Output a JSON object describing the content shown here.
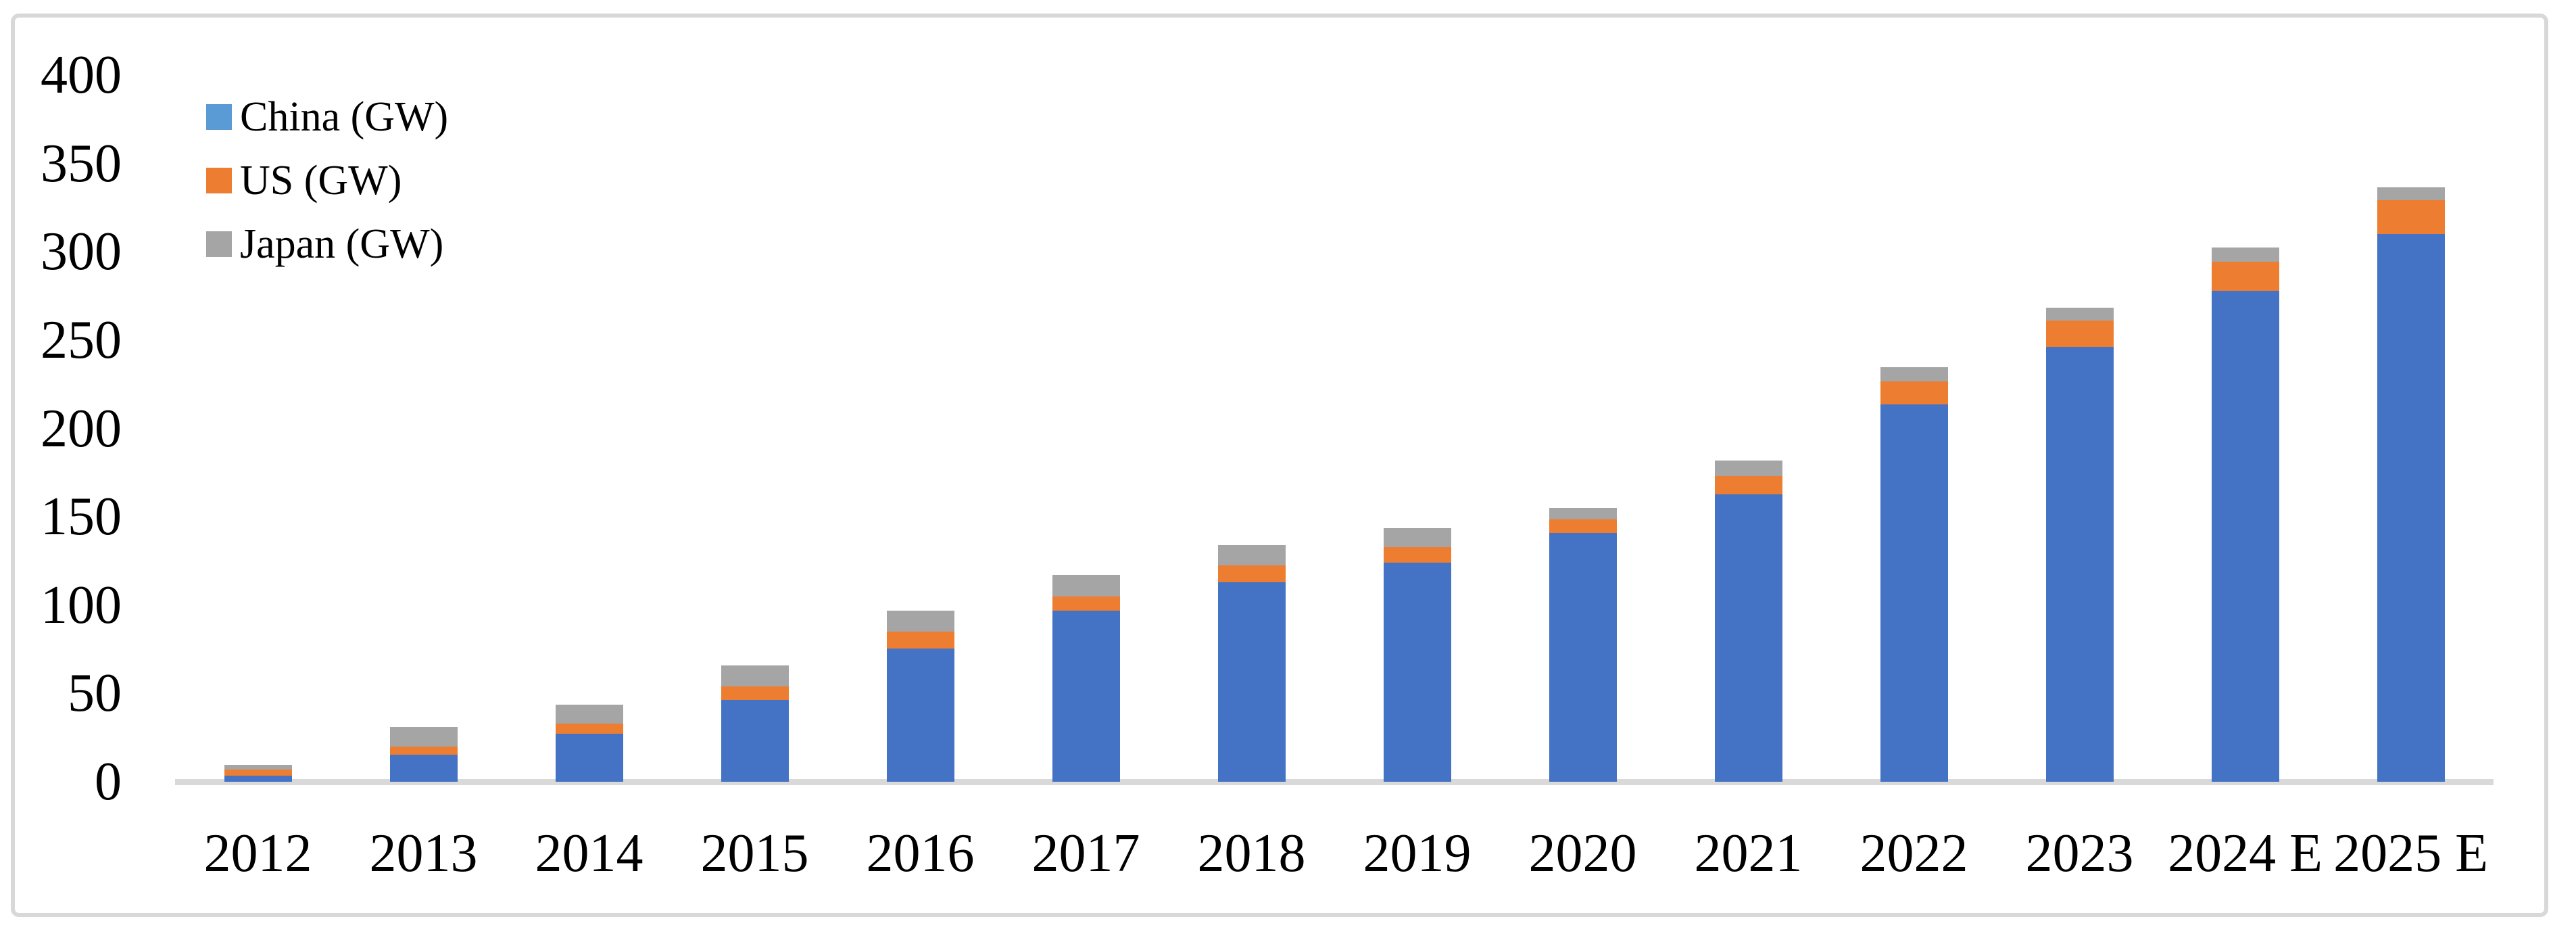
{
  "chart_data": {
    "type": "bar",
    "stacked": true,
    "title": "",
    "xlabel": "",
    "ylabel": "",
    "unit": "GW",
    "categories": [
      "2012",
      "2013",
      "2014",
      "2015",
      "2016",
      "2017",
      "2018",
      "2019",
      "2020",
      "2021",
      "2022",
      "2023",
      "2024 E",
      "2025 E"
    ],
    "series": [
      {
        "name": "China (GW)",
        "color": "#4472c4",
        "legend_color": "#5b9bd5",
        "values": [
          3.5,
          15.5,
          27,
          46.5,
          75.5,
          97,
          113,
          124,
          141,
          162.5,
          213.5,
          246,
          278,
          310
        ]
      },
      {
        "name": "US (GW)",
        "color": "#ed7d31",
        "legend_color": "#ed7d31",
        "values": [
          3.5,
          4.5,
          6,
          7.5,
          9.5,
          8,
          9.5,
          9,
          7.5,
          10.5,
          13,
          15,
          16.5,
          19
        ]
      },
      {
        "name": "Japan (GW)",
        "color": "#a5a5a5",
        "legend_color": "#a5a5a5",
        "values": [
          2.5,
          11,
          10.5,
          12,
          12,
          12,
          11.5,
          10.5,
          6.5,
          9,
          8,
          7.5,
          8,
          7.5
        ]
      }
    ],
    "yticks": [
      0,
      50,
      100,
      150,
      200,
      250,
      300,
      350,
      400
    ],
    "ylim": [
      0,
      400
    ],
    "grid": false,
    "legend_position": "top-left",
    "axis_line_color": "#d9d9d9",
    "border_color": "#d8d8d8",
    "text_color": "#000000"
  }
}
